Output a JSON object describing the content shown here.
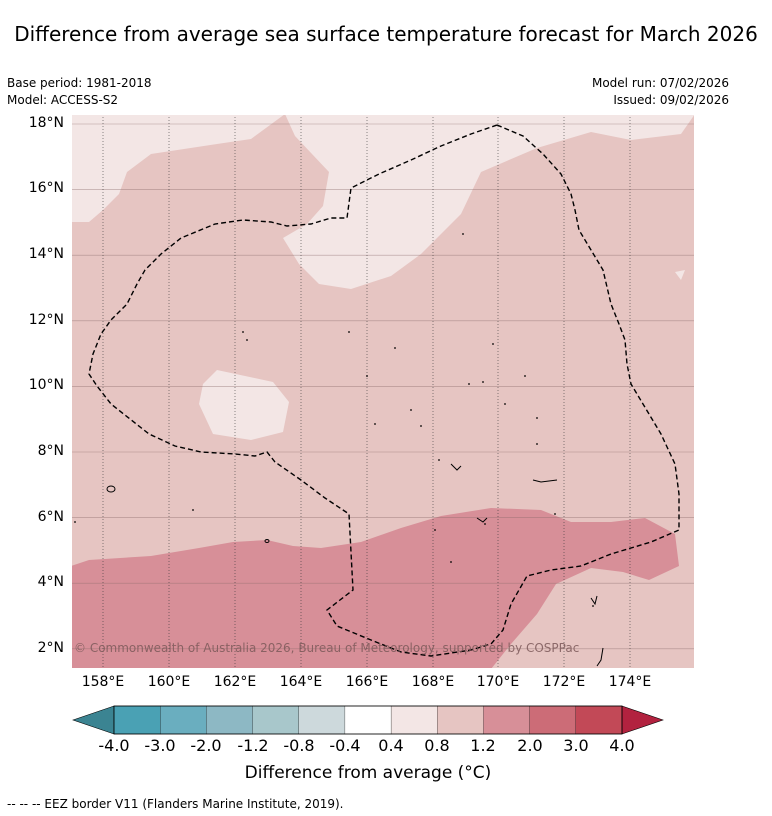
{
  "title": "Difference from average sea surface temperature forecast for March 2026",
  "meta": {
    "base_period": "Base period: 1981-2018",
    "model": "Model: ACCESS-S2",
    "model_run": "Model run: 07/02/2026",
    "issued": "Issued: 09/02/2026"
  },
  "map": {
    "lat_ticks": [
      "18°N",
      "16°N",
      "14°N",
      "12°N",
      "10°N",
      "8°N",
      "6°N",
      "4°N",
      "2°N"
    ],
    "lon_ticks": [
      "158°E",
      "160°E",
      "162°E",
      "164°E",
      "166°E",
      "168°E",
      "170°E",
      "172°E",
      "174°E"
    ],
    "copyright": "© Commonwealth of Australia 2026, Bureau of Meteorology, supported by COSPPac"
  },
  "colorbar": {
    "ticks": [
      "-4.0",
      "-3.0",
      "-2.0",
      "-1.2",
      "-0.8",
      "-0.4",
      "0.4",
      "0.8",
      "1.2",
      "2.0",
      "3.0",
      "4.0"
    ],
    "colors": [
      "#4aa1b4",
      "#6aaebf",
      "#8db8c4",
      "#a8c7cb",
      "#cdd9dc",
      "#ffffff",
      "#f3e6e5",
      "#e6c5c2",
      "#d78f98",
      "#cc6c77",
      "#c24957"
    ],
    "under_color": "#3b8492",
    "over_color": "#b2223f",
    "label": "Difference from average (°C)"
  },
  "footer": "-- -- -- EEZ border V11 (Flanders Marine Institute, 2019)."
}
